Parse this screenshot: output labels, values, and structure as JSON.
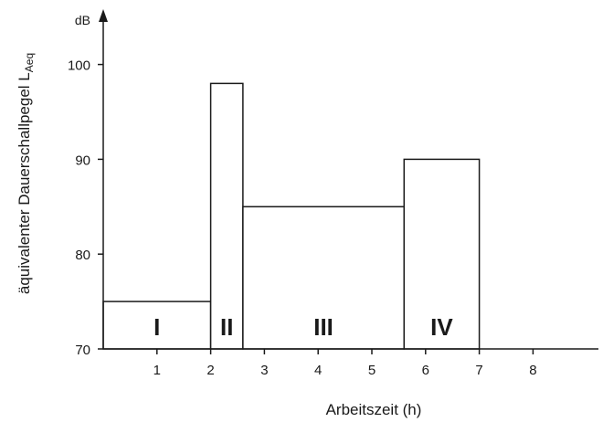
{
  "chart_data": {
    "type": "bar",
    "xlabel": "Arbeitszeit (h)",
    "ylabel": "äquivalenter Dauerschallpegel L",
    "ylabel_subscript": "Aeq",
    "yunit": "dB",
    "ylim": [
      70,
      103
    ],
    "xlim": [
      0,
      9
    ],
    "x_ticks": [
      "1",
      "2",
      "3",
      "4",
      "5",
      "6",
      "7",
      "8"
    ],
    "y_ticks": [
      "70",
      "80",
      "90",
      "100"
    ],
    "grid": false,
    "segments": [
      {
        "label": "I",
        "start": 0,
        "end": 2,
        "value": 75
      },
      {
        "label": "II",
        "start": 2,
        "end": 2.6,
        "value": 98
      },
      {
        "label": "III",
        "start": 2.6,
        "end": 5.6,
        "value": 85
      },
      {
        "label": "IV",
        "start": 5.6,
        "end": 7,
        "value": 90
      }
    ]
  }
}
